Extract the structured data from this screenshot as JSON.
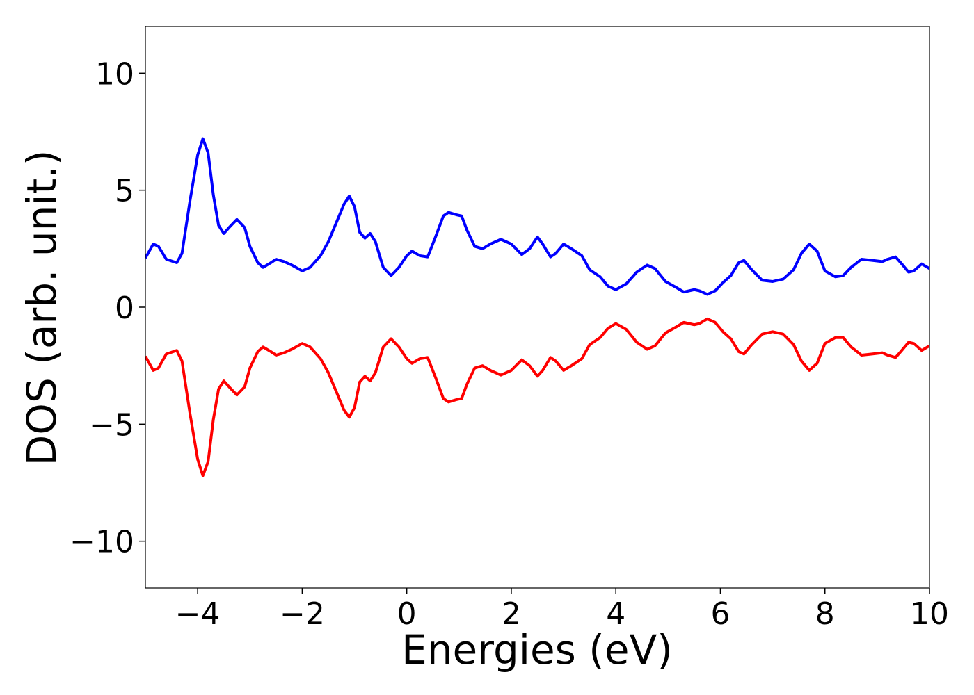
{
  "chart_data": {
    "type": "line",
    "xlabel": "Energies (eV)",
    "ylabel": "DOS (arb. unit.)",
    "x": [
      -5,
      -4.85,
      -4.75,
      -4.6,
      -4.4,
      -4.3,
      -4.15,
      -4.0,
      -3.9,
      -3.8,
      -3.7,
      -3.6,
      -3.5,
      -3.4,
      -3.25,
      -3.1,
      -3.0,
      -2.85,
      -2.75,
      -2.6,
      -2.5,
      -2.35,
      -2.2,
      -2.0,
      -1.85,
      -1.65,
      -1.5,
      -1.35,
      -1.2,
      -1.1,
      -1.0,
      -0.9,
      -0.8,
      -0.7,
      -0.6,
      -0.45,
      -0.3,
      -0.15,
      0.0,
      0.1,
      0.25,
      0.4,
      0.55,
      0.7,
      0.8,
      0.95,
      1.05,
      1.15,
      1.3,
      1.45,
      1.6,
      1.8,
      2.0,
      2.2,
      2.35,
      2.5,
      2.6,
      2.75,
      2.85,
      3.0,
      3.15,
      3.35,
      3.5,
      3.7,
      3.85,
      4.0,
      4.2,
      4.4,
      4.6,
      4.75,
      4.95,
      5.15,
      5.3,
      5.5,
      5.6,
      5.75,
      5.9,
      6.05,
      6.2,
      6.35,
      6.45,
      6.6,
      6.8,
      7.0,
      7.2,
      7.4,
      7.55,
      7.7,
      7.85,
      8.0,
      8.2,
      8.35,
      8.5,
      8.7,
      8.9,
      9.1,
      9.2,
      9.35,
      9.45,
      9.6,
      9.7,
      9.85,
      10.0
    ],
    "series": [
      {
        "color": "#0000ff",
        "values": [
          2.1,
          2.7,
          2.6,
          2.05,
          1.9,
          2.3,
          4.5,
          6.5,
          7.2,
          6.6,
          4.8,
          3.5,
          3.15,
          3.4,
          3.75,
          3.4,
          2.6,
          1.9,
          1.7,
          1.9,
          2.05,
          1.95,
          1.8,
          1.55,
          1.7,
          2.2,
          2.8,
          3.6,
          4.4,
          4.75,
          4.3,
          3.2,
          2.95,
          3.15,
          2.8,
          1.7,
          1.35,
          1.7,
          2.2,
          2.4,
          2.2,
          2.15,
          3.0,
          3.9,
          4.05,
          3.95,
          3.9,
          3.3,
          2.6,
          2.5,
          2.7,
          2.9,
          2.7,
          2.25,
          2.5,
          3.0,
          2.7,
          2.15,
          2.3,
          2.7,
          2.5,
          2.2,
          1.6,
          1.3,
          0.9,
          0.75,
          1.0,
          1.5,
          1.8,
          1.65,
          1.1,
          0.85,
          0.65,
          0.75,
          0.7,
          0.55,
          0.7,
          1.05,
          1.35,
          1.9,
          2.0,
          1.6,
          1.15,
          1.1,
          1.2,
          1.6,
          2.3,
          2.7,
          2.4,
          1.55,
          1.3,
          1.35,
          1.7,
          2.05,
          2.0,
          1.95,
          2.05,
          2.15,
          1.9,
          1.5,
          1.55,
          1.85,
          1.65
        ]
      },
      {
        "color": "#ff0000",
        "values": [
          -2.1,
          -2.7,
          -2.6,
          -2.0,
          -1.85,
          -2.3,
          -4.5,
          -6.5,
          -7.2,
          -6.6,
          -4.8,
          -3.5,
          -3.15,
          -3.4,
          -3.75,
          -3.4,
          -2.6,
          -1.9,
          -1.7,
          -1.9,
          -2.05,
          -1.95,
          -1.8,
          -1.55,
          -1.7,
          -2.2,
          -2.8,
          -3.6,
          -4.4,
          -4.7,
          -4.3,
          -3.2,
          -2.95,
          -3.15,
          -2.8,
          -1.7,
          -1.35,
          -1.7,
          -2.2,
          -2.4,
          -2.2,
          -2.15,
          -3.0,
          -3.9,
          -4.05,
          -3.95,
          -3.9,
          -3.3,
          -2.6,
          -2.5,
          -2.7,
          -2.9,
          -2.7,
          -2.25,
          -2.5,
          -2.95,
          -2.7,
          -2.15,
          -2.3,
          -2.7,
          -2.5,
          -2.2,
          -1.6,
          -1.3,
          -0.9,
          -0.7,
          -0.95,
          -1.5,
          -1.8,
          -1.65,
          -1.1,
          -0.85,
          -0.65,
          -0.75,
          -0.7,
          -0.5,
          -0.65,
          -1.05,
          -1.35,
          -1.9,
          -2.0,
          -1.6,
          -1.15,
          -1.05,
          -1.15,
          -1.6,
          -2.3,
          -2.7,
          -2.4,
          -1.55,
          -1.3,
          -1.3,
          -1.7,
          -2.05,
          -2.0,
          -1.95,
          -2.05,
          -2.15,
          -1.9,
          -1.5,
          -1.55,
          -1.85,
          -1.65
        ]
      }
    ],
    "xlim": [
      -5,
      10
    ],
    "xticks": [
      {
        "value": -4,
        "label": "−4"
      },
      {
        "value": -2,
        "label": "−2"
      },
      0,
      2,
      4,
      6,
      8,
      10
    ],
    "ylim": [
      -12,
      12
    ],
    "yticks": [
      {
        "value": -10,
        "label": "−10"
      },
      {
        "value": -5,
        "label": "−5"
      },
      0,
      5,
      10
    ]
  }
}
